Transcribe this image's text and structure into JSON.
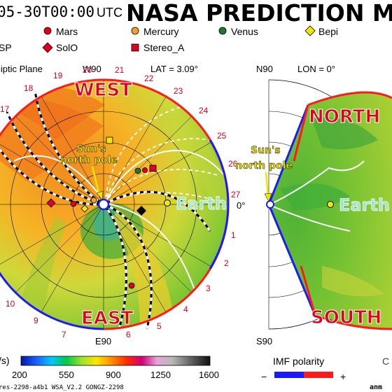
{
  "header": {
    "timestamp": "05-30T00:00",
    "utc": "UTC",
    "title": "NASA PREDICTION MO"
  },
  "legend": [
    {
      "label": "Mars",
      "marker": "circle",
      "color": "#e3001b"
    },
    {
      "label": "Mercury",
      "marker": "circle",
      "color": "#f4a12a"
    },
    {
      "label": "Venus",
      "marker": "circle",
      "color": "#1e7a2b"
    },
    {
      "label": "Bepi",
      "marker": "diamond",
      "color": "#f2e600"
    },
    {
      "label": "SP",
      "marker": "none",
      "color": "#000000"
    },
    {
      "label": "SolO",
      "marker": "diamond",
      "color": "#e3001b"
    },
    {
      "label": "Stereo_A",
      "marker": "square",
      "color": "#e3001b"
    }
  ],
  "left_panel": {
    "plane_label": "liptic Plane",
    "top_direction": "W90",
    "lat_label": "LAT = 3.09°",
    "bottom_direction": "E90",
    "angle_label": "0°",
    "west_label": "WEST",
    "east_label": "EAST",
    "earth_label": "Earth",
    "pole_label_1": "Sun's",
    "pole_label_2": "north pole",
    "carrington_ticks": [
      "1",
      "2",
      "3",
      "4",
      "5",
      "6",
      "7",
      "8",
      "9",
      "10",
      "17",
      "18",
      "19",
      "20",
      "21",
      "22",
      "23",
      "24",
      "25",
      "26",
      "27"
    ]
  },
  "right_panel": {
    "top_direction": "N90",
    "lon_label": "LON = 0°",
    "bottom_direction": "S90",
    "north_label": "NORTH",
    "south_label": "SOUTH",
    "earth_label": "Earth",
    "pole_label_1": "Sun's",
    "pole_label_2": "north pole"
  },
  "colorbar": {
    "unit_label": "/s)",
    "ticks": [
      "200",
      "550",
      "900",
      "1250",
      "1600"
    ]
  },
  "imf": {
    "label": "IMF polarity",
    "minus": "−",
    "plus": "+",
    "negative_color": "#1a1aff",
    "positive_color": "#ff1a1a"
  },
  "footer": {
    "left_text": "res-2298-a4b1 WSA_V2.2 GONGZ-2298",
    "right_text": "anm",
    "corner_text": "C"
  }
}
